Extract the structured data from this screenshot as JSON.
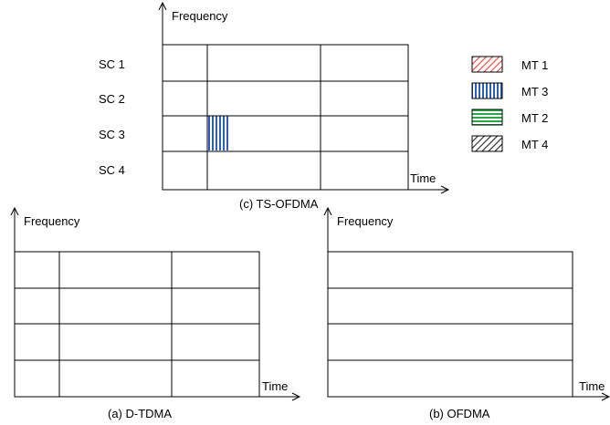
{
  "colors": {
    "mt1": "#e8413c",
    "mt3": "#2f5fb4",
    "mt2": "#2aa84a",
    "mt4": "#222222"
  },
  "diagram_c": {
    "y_axis_label": "Frequency",
    "x_axis_label": "Time",
    "caption": "(c) TS-OFDMA",
    "rows": [
      "SC 1",
      "SC 2",
      "SC 3",
      "SC 4"
    ]
  },
  "legend": [
    {
      "label": "MT 1",
      "color_key": "mt1",
      "pattern": "diagonal"
    },
    {
      "label": "MT 3",
      "color_key": "mt3",
      "pattern": "vertical"
    },
    {
      "label": "MT 2",
      "color_key": "mt2",
      "pattern": "horizontal"
    },
    {
      "label": "MT 4",
      "color_key": "mt4",
      "pattern": "diagonal"
    }
  ],
  "diagram_a": {
    "y_axis_label": "Frequency",
    "x_axis_label": "Time",
    "caption": "(a) D-TDMA"
  },
  "diagram_b": {
    "y_axis_label": "Frequency",
    "x_axis_label": "Time",
    "caption": "(b) OFDMA"
  }
}
